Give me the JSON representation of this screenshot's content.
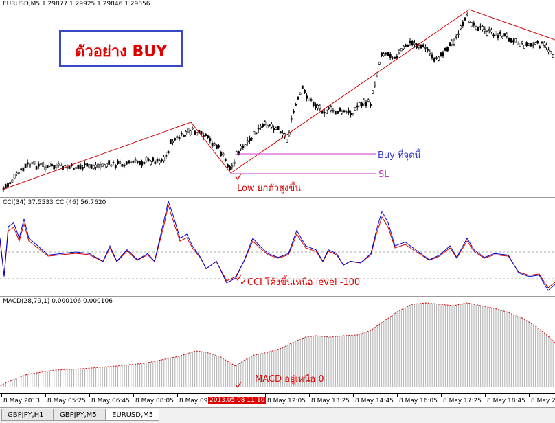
{
  "main_chart": {
    "symbol_label": "EURUSD,M5  1.29877 1.29925 1.29846 1.29856",
    "title_box": "ตัวอย่าง BUY",
    "buy_label": "Buy ที่จุดนี้",
    "sl_label": "SL",
    "low_label": "Low ยกตัวสูงขึ้น"
  },
  "cci_pane": {
    "label": "CCI(34) 37.5533  CCI(46) 56.7620",
    "annotation": "✓CCI โค้งขึ้นเหนือ level -100"
  },
  "macd_pane": {
    "label": "MACD(28,79,1) 0.000106 0.000106",
    "annotation": "MACD อยู่เหนือ 0"
  },
  "x_axis": {
    "ticks": [
      "8 May 2013",
      "8 May 05:25",
      "8 May 06:45",
      "8 May 08:05",
      "8 May 09:",
      "8 May 12:05",
      "8 May 13:25",
      "8 May 14:45",
      "8 May 16:05",
      "8 May 17:25",
      "8 May 18:45",
      "8 May 20"
    ],
    "cursor_label": "2013.05.08 11:10"
  },
  "tabs": [
    "GBPJPY,H1",
    "GBPJPY,M5",
    "EURUSD,M5"
  ],
  "colors": {
    "zigzag": "#d00000",
    "buy_line": "#cc33cc",
    "cci_blue": "#0000cc",
    "cci_red": "#cc0000",
    "macd": "#cc0000",
    "title_border": "#3a48c8"
  }
}
